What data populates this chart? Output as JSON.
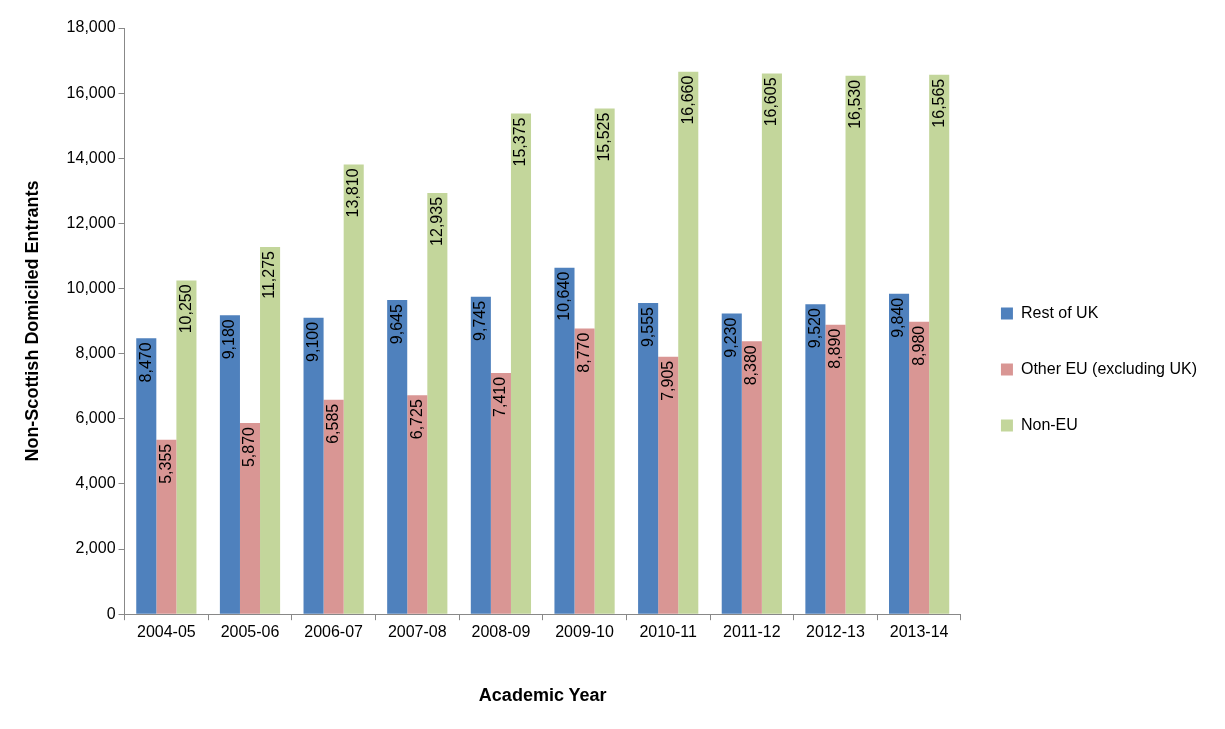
{
  "chart_data": {
    "type": "bar",
    "xlabel": "Academic Year",
    "ylabel": "Non-Scottish Domiciled Entrants",
    "categories": [
      "2004-05",
      "2005-06",
      "2006-07",
      "2007-08",
      "2008-09",
      "2009-10",
      "2010-11",
      "2011-12",
      "2012-13",
      "2013-14"
    ],
    "series": [
      {
        "name": "Rest of UK",
        "color": "#4f81bd",
        "values": [
          8470,
          9180,
          9100,
          9645,
          9745,
          10640,
          9555,
          9230,
          9520,
          9840
        ],
        "value_labels": [
          "8,470",
          "9,180",
          "9,100",
          "9,645",
          "9,745",
          "10,640",
          "9,555",
          "9,230",
          "9,520",
          "9,840"
        ]
      },
      {
        "name": "Other EU (excluding UK)",
        "color": "#d99694",
        "values": [
          5355,
          5870,
          6585,
          6725,
          7410,
          8770,
          7905,
          8380,
          8890,
          8980
        ],
        "value_labels": [
          "5,355",
          "5,870",
          "6,585",
          "6,725",
          "7,410",
          "8,770",
          "7,905",
          "8,380",
          "8,890",
          "8,980"
        ]
      },
      {
        "name": "Non-EU",
        "color": "#c3d69b",
        "values": [
          10250,
          11275,
          13810,
          12935,
          15375,
          15525,
          16660,
          16605,
          16530,
          16565
        ],
        "value_labels": [
          "10,250",
          "11,275",
          "13,810",
          "12,935",
          "15,375",
          "15,525",
          "16,660",
          "16,605",
          "16,530",
          "16,565"
        ]
      }
    ],
    "ylim": [
      0,
      18000
    ],
    "yticks": [
      0,
      {
        "value": 2000,
        "label": "2,000"
      },
      {
        "value": 4000,
        "label": "4,000"
      },
      {
        "value": 6000,
        "label": "6,000"
      },
      {
        "value": 8000,
        "label": "8,000"
      },
      {
        "value": 10000,
        "label": "10,000"
      },
      {
        "value": 12000,
        "label": "12,000"
      },
      {
        "value": 14000,
        "label": "14,000"
      },
      {
        "value": 16000,
        "label": "16,000"
      },
      {
        "value": 18000,
        "label": "18,000"
      }
    ],
    "grid": false,
    "legend": "right"
  }
}
